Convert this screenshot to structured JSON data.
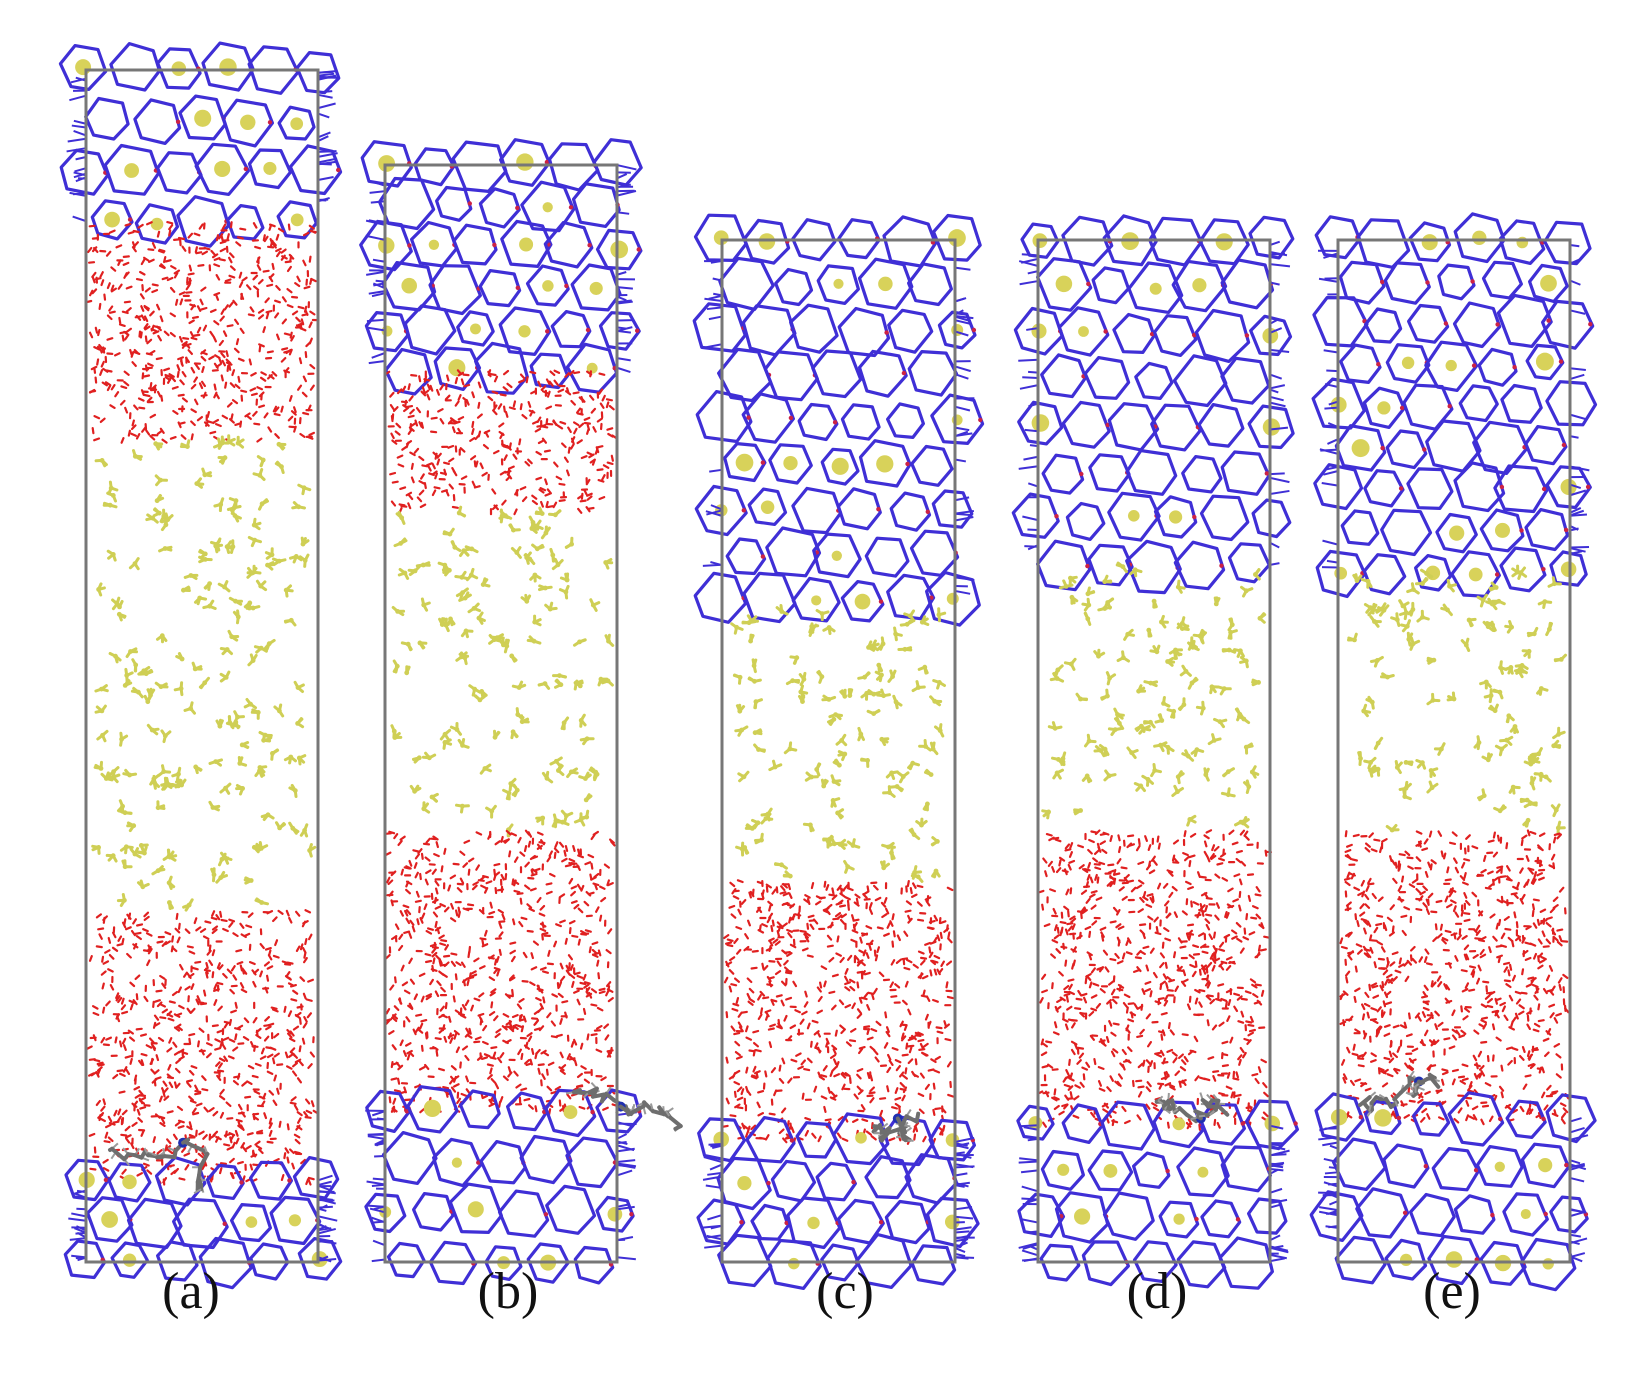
{
  "figure": {
    "panels": [
      {
        "label": "(a)"
      },
      {
        "label": "(b)"
      },
      {
        "label": "(c)"
      },
      {
        "label": "(d)"
      },
      {
        "label": "(e)"
      }
    ],
    "colors": {
      "framework_bonds": "#3f2fd6",
      "framework_oxygen": "#cc2244",
      "silicon_atoms": "#d8d25a",
      "water": "#e02020",
      "small_molecules": "#cfcf55",
      "organic_molecule": "#6e6e6e",
      "organic_nitrogen": "#2030b0",
      "cell_box": "#777777"
    }
  }
}
